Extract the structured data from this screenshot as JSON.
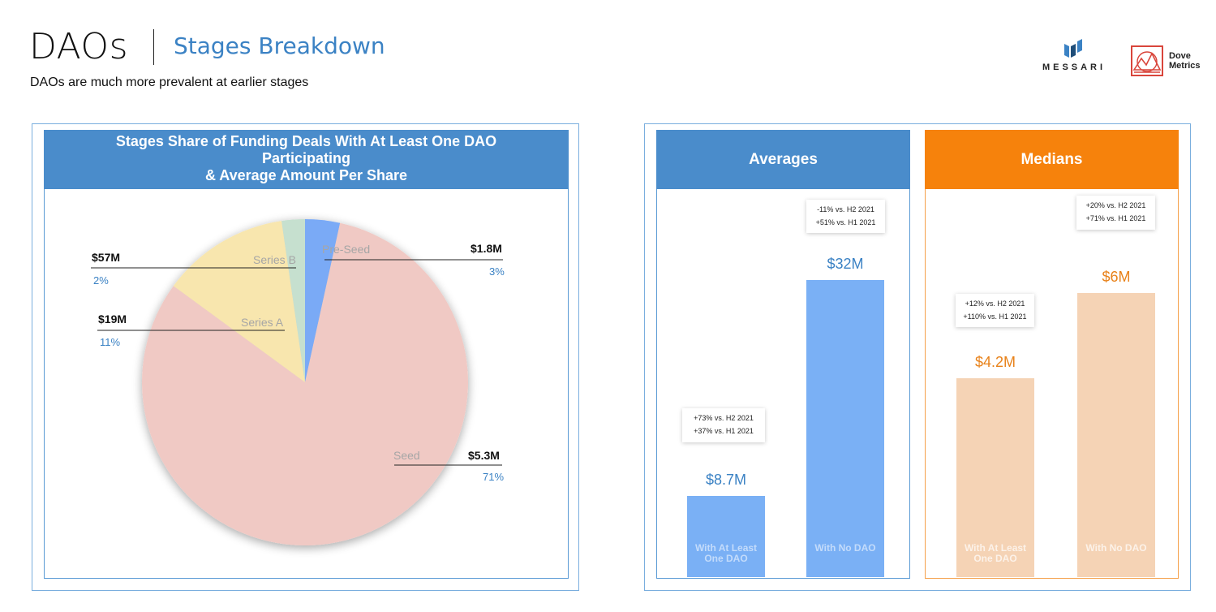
{
  "header": {
    "title": "DAOs",
    "section": "Stages Breakdown",
    "subtitle": "DAOs are much more prevalent at earlier stages"
  },
  "logos": {
    "messari": "MESSARI",
    "dove_line1": "Dove",
    "dove_line2": "Metrics"
  },
  "colors": {
    "accent_blue": "#4a8ccb",
    "accent_orange": "#f6820c",
    "seed": "#f0c9c4",
    "series_a": "#f8e6ae",
    "series_b": "#c6e0cf",
    "pre_seed": "#7aaaf6",
    "bar_blue": "#7ab0f5",
    "bar_orange": "#f5d3b5",
    "value_blue": "#3b82c4",
    "value_orange": "#e8821a"
  },
  "chart_data": [
    {
      "type": "pie",
      "title_lines": [
        "Stages Share of Funding Deals With At Least One DAO",
        "Participating",
        "& Average Amount Per Share"
      ],
      "slices": [
        {
          "name": "Pre-Seed",
          "share": 3,
          "share_label": "3%",
          "amount_label": "$1.8M"
        },
        {
          "name": "Seed",
          "share": 71,
          "share_label": "71%",
          "amount_label": "$5.3M"
        },
        {
          "name": "Series A",
          "share": 11,
          "share_label": "11%",
          "amount_label": "$19M"
        },
        {
          "name": "Series B",
          "share": 2,
          "share_label": "2%",
          "amount_label": "$57M"
        }
      ],
      "legend": "none"
    },
    {
      "type": "bar",
      "title": "Averages",
      "categories": [
        "With At Least One DAO",
        "With No DAO"
      ],
      "values": [
        8.7,
        32
      ],
      "value_labels": [
        "$8.7M",
        "$32M"
      ],
      "unit": "$M",
      "notes": [
        [
          "+73% vs. H2 2021",
          "+37% vs. H1 2021"
        ],
        [
          "-11% vs. H2 2021",
          "+51% vs. H1 2021"
        ]
      ]
    },
    {
      "type": "bar",
      "title": "Medians",
      "categories": [
        "With At Least One DAO",
        "With No DAO"
      ],
      "values": [
        4.2,
        6
      ],
      "value_labels": [
        "$4.2M",
        "$6M"
      ],
      "unit": "$M",
      "notes": [
        [
          "+12% vs. H2 2021",
          "+110% vs. H1 2021"
        ],
        [
          "+20% vs. H2 2021",
          "+71% vs. H1 2021"
        ]
      ]
    }
  ]
}
